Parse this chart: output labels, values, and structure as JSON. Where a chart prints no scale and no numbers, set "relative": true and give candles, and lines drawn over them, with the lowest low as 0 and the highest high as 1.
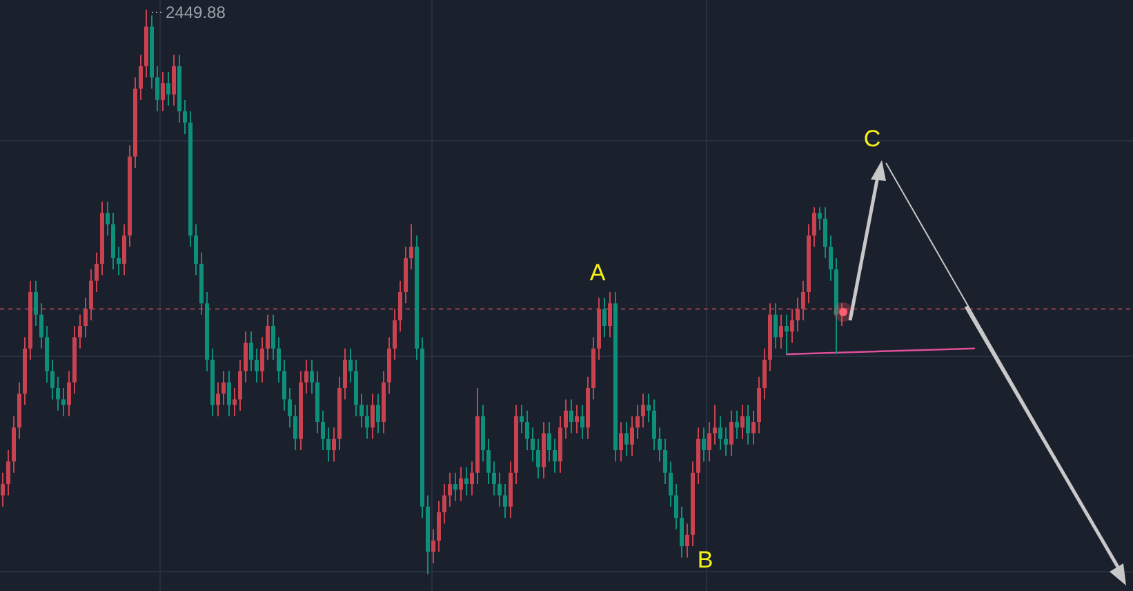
{
  "chart_data": {
    "type": "candlestick",
    "relative": true,
    "grid": true,
    "colors": [
      "#c8424f",
      "#c8424f",
      "#c8424f",
      "#c8424f",
      "#c8424f",
      "#c8424f",
      "#0e8f7a",
      "#0e8f7a",
      "#0e8f7a",
      "#0e8f7a",
      "#0e8f7a",
      "#0e8f7a",
      "#c8424f",
      "#c8424f",
      "#c8424f",
      "#c8424f",
      "#c8424f",
      "#c8424f",
      "#c8424f",
      "#0e8f7a",
      "#0e8f7a",
      "#0e8f7a",
      "#c8424f",
      "#c8424f",
      "#c8424f",
      "#c8424f",
      "#c8424f",
      "#0e8f7a",
      "#0e8f7a",
      "#c8424f",
      "#0e8f7a",
      "#c8424f",
      "#0e8f7a",
      "#0e8f7a",
      "#0e8f7a",
      "#0e8f7a",
      "#0e8f7a",
      "#0e8f7a",
      "#0e8f7a",
      "#c8424f",
      "#c8424f",
      "#0e8f7a",
      "#c8424f",
      "#c8424f",
      "#c8424f",
      "#0e8f7a",
      "#0e8f7a",
      "#c8424f",
      "#c8424f",
      "#0e8f7a",
      "#0e8f7a",
      "#0e8f7a",
      "#0e8f7a",
      "#0e8f7a",
      "#c8424f",
      "#c8424f",
      "#0e8f7a",
      "#0e8f7a",
      "#0e8f7a",
      "#0e8f7a",
      "#c8424f",
      "#c8424f",
      "#c8424f",
      "#0e8f7a",
      "#0e8f7a",
      "#0e8f7a",
      "#0e8f7a",
      "#c8424f",
      "#0e8f7a",
      "#c8424f",
      "#c8424f",
      "#c8424f",
      "#c8424f",
      "#c8424f",
      "#c8424f",
      "#0e8f7a",
      "#0e8f7a",
      "#0e8f7a",
      "#c8424f",
      "#c8424f",
      "#c8424f",
      "#c8424f",
      "#0e8f7a",
      "#c8424f",
      "#0e8f7a",
      "#c8424f",
      "#c8424f",
      "#0e8f7a",
      "#0e8f7a",
      "#0e8f7a",
      "#0e8f7a",
      "#0e8f7a",
      "#c8424f",
      "#c8424f",
      "#0e8f7a",
      "#0e8f7a",
      "#0e8f7a",
      "#0e8f7a",
      "#c8424f",
      "#0e8f7a",
      "#0e8f7a",
      "#c8424f",
      "#c8424f",
      "#0e8f7a",
      "#c8424f",
      "#0e8f7a",
      "#c8424f",
      "#c8424f",
      "#c8424f",
      "#0e8f7a",
      "#c8424f",
      "#0e8f7a",
      "#c8424f",
      "#0e8f7a",
      "#c8424f",
      "#c8424f",
      "#c8424f",
      "#0e8f7a",
      "#0e8f7a",
      "#0e8f7a",
      "#0e8f7a",
      "#0e8f7a",
      "#0e8f7a",
      "#0e8f7a",
      "#c8424f",
      "#c8424f",
      "#c8424f",
      "#0e8f7a",
      "#c8424f",
      "#c8424f",
      "#0e8f7a",
      "#0e8f7a",
      "#c8424f",
      "#0e8f7a",
      "#c8424f",
      "#0e8f7a",
      "#c8424f",
      "#c8424f",
      "#c8424f",
      "#c8424f",
      "#0e8f7a",
      "#c8424f",
      "#0e8f7a",
      "#c8424f",
      "#c8424f",
      "#c8424f",
      "#c8424f",
      "#c8424f",
      "#0e8f7a",
      "#0e8f7a",
      "#0e8f7a",
      "#0e8f7a",
      "#c8424f",
      null,
      null,
      null,
      null,
      null,
      null,
      null,
      null,
      null,
      null,
      null,
      null,
      null,
      null,
      null,
      null,
      null,
      null,
      null,
      null,
      null,
      null,
      null,
      null
    ],
    "annotations": [
      "2449.88",
      "A",
      "B",
      "C"
    ],
    "ref_lines": [
      {
        "axis": "y",
        "value": 0.47,
        "color": "#7a3a48",
        "line_style": "dotted"
      }
    ],
    "categories": [
      null,
      null,
      null,
      null,
      null,
      null,
      null,
      null,
      null,
      null,
      null,
      null,
      null,
      null,
      null,
      null,
      null,
      null,
      null,
      null,
      null,
      null,
      null,
      null,
      null,
      null,
      null,
      null,
      null,
      null,
      null,
      null,
      null,
      null,
      null,
      null,
      null,
      null,
      null,
      null,
      null,
      null,
      null,
      null,
      null,
      null,
      null,
      null,
      null,
      null,
      null,
      null,
      null,
      null,
      null,
      null,
      null,
      null,
      null,
      null,
      null,
      null,
      null,
      null,
      null,
      null,
      null,
      null,
      null,
      null,
      null,
      null,
      null,
      null,
      null,
      null,
      null,
      null,
      null,
      null,
      null,
      null,
      null,
      null,
      null,
      null,
      null,
      null,
      null,
      null,
      null,
      null,
      null,
      null,
      null,
      null,
      null,
      null,
      null,
      null,
      null,
      null,
      null,
      null,
      null,
      null,
      null,
      null,
      null,
      null,
      null,
      null,
      null,
      null,
      null,
      null,
      null,
      null,
      null,
      null,
      null,
      null,
      null,
      null,
      null,
      null,
      null,
      null,
      null,
      null,
      null,
      null,
      null,
      null,
      null,
      null,
      null,
      null,
      null,
      null,
      null,
      null,
      null,
      null,
      null,
      null,
      null,
      null,
      null,
      null,
      null,
      null,
      null,
      null,
      null,
      null,
      null,
      null,
      null,
      null,
      null,
      null,
      null,
      null,
      null,
      null,
      null,
      null,
      null,
      null,
      null,
      null,
      null,
      null,
      null,
      null,
      null
    ],
    "series": [
      {
        "type": "line",
        "color": "#e0509a",
        "values": [
          null,
          null,
          null,
          null,
          null,
          null,
          null,
          null,
          null,
          null,
          null,
          null,
          null,
          null,
          null,
          null,
          null,
          null,
          null,
          null,
          null,
          null,
          null,
          null,
          null,
          null,
          null,
          null,
          null,
          null,
          null,
          null,
          null,
          null,
          null,
          null,
          null,
          null,
          null,
          null,
          null,
          null,
          null,
          null,
          null,
          null,
          null,
          null,
          null,
          null,
          null,
          null,
          null,
          null,
          null,
          null,
          null,
          null,
          null,
          null,
          null,
          null,
          null,
          null,
          null,
          null,
          null,
          null,
          null,
          null,
          null,
          null,
          null,
          null,
          null,
          null,
          null,
          null,
          null,
          null,
          null,
          null,
          null,
          null,
          null,
          null,
          null,
          null,
          null,
          null,
          null,
          null,
          null,
          null,
          null,
          null,
          null,
          null,
          null,
          null,
          null,
          null,
          null,
          null,
          null,
          null,
          null,
          null,
          null,
          null,
          null,
          null,
          null,
          null,
          null,
          null,
          null,
          null,
          null,
          null,
          null,
          null,
          null,
          null,
          null,
          null,
          null,
          null,
          null,
          null,
          null,
          null,
          null,
          null,
          null,
          null,
          null,
          null,
          null,
          null,
          null,
          null,
          0.39,
          null,
          null,
          null,
          null,
          null,
          null,
          null,
          null,
          null,
          null,
          null,
          null,
          null,
          null,
          null,
          null,
          null,
          null,
          null,
          null,
          null,
          null,
          null,
          null,
          null,
          null,
          null,
          null,
          null,
          null,
          null,
          null,
          null,
          0.4
        ]
      }
    ],
    "ohlc": [
      [
        0.14,
        0.18,
        0.12,
        0.16
      ],
      [
        0.16,
        0.22,
        0.14,
        0.2
      ],
      [
        0.2,
        0.28,
        0.18,
        0.26
      ],
      [
        0.26,
        0.34,
        0.24,
        0.32
      ],
      [
        0.32,
        0.42,
        0.3,
        0.4
      ],
      [
        0.4,
        0.52,
        0.38,
        0.5
      ],
      [
        0.5,
        0.52,
        0.44,
        0.46
      ],
      [
        0.46,
        0.48,
        0.4,
        0.42
      ],
      [
        0.42,
        0.44,
        0.34,
        0.36
      ],
      [
        0.36,
        0.38,
        0.31,
        0.33
      ],
      [
        0.33,
        0.35,
        0.29,
        0.31
      ],
      [
        0.31,
        0.33,
        0.28,
        0.3
      ],
      [
        0.3,
        0.36,
        0.28,
        0.34
      ],
      [
        0.34,
        0.44,
        0.32,
        0.42
      ],
      [
        0.42,
        0.46,
        0.4,
        0.44
      ],
      [
        0.44,
        0.49,
        0.42,
        0.47
      ],
      [
        0.47,
        0.54,
        0.45,
        0.52
      ],
      [
        0.52,
        0.57,
        0.5,
        0.55
      ],
      [
        0.55,
        0.66,
        0.53,
        0.64
      ],
      [
        0.64,
        0.66,
        0.6,
        0.62
      ],
      [
        0.62,
        0.64,
        0.54,
        0.56
      ],
      [
        0.56,
        0.58,
        0.53,
        0.55
      ],
      [
        0.55,
        0.62,
        0.53,
        0.6
      ],
      [
        0.6,
        0.76,
        0.58,
        0.74
      ],
      [
        0.74,
        0.88,
        0.72,
        0.86
      ],
      [
        0.86,
        0.92,
        0.84,
        0.9
      ],
      [
        0.9,
        1,
        0.88,
        0.97
      ],
      [
        0.97,
        0.99,
        0.86,
        0.88
      ],
      [
        0.88,
        0.9,
        0.82,
        0.84
      ],
      [
        0.84,
        0.89,
        0.82,
        0.87
      ],
      [
        0.87,
        0.89,
        0.83,
        0.85
      ],
      [
        0.85,
        0.92,
        0.83,
        0.9
      ],
      [
        0.9,
        0.92,
        0.8,
        0.82
      ],
      [
        0.82,
        0.84,
        0.78,
        0.8
      ],
      [
        0.8,
        0.82,
        0.58,
        0.6
      ],
      [
        0.6,
        0.62,
        0.53,
        0.55
      ],
      [
        0.55,
        0.57,
        0.46,
        0.48
      ],
      [
        0.48,
        0.5,
        0.36,
        0.38
      ],
      [
        0.38,
        0.4,
        0.28,
        0.3
      ],
      [
        0.3,
        0.34,
        0.28,
        0.32
      ],
      [
        0.32,
        0.36,
        0.3,
        0.34
      ],
      [
        0.34,
        0.36,
        0.28,
        0.3
      ],
      [
        0.3,
        0.33,
        0.28,
        0.31
      ],
      [
        0.31,
        0.38,
        0.29,
        0.36
      ],
      [
        0.36,
        0.43,
        0.34,
        0.41
      ],
      [
        0.41,
        0.43,
        0.36,
        0.38
      ],
      [
        0.38,
        0.4,
        0.34,
        0.36
      ],
      [
        0.36,
        0.42,
        0.34,
        0.4
      ],
      [
        0.4,
        0.46,
        0.38,
        0.44
      ],
      [
        0.44,
        0.46,
        0.38,
        0.4
      ],
      [
        0.4,
        0.42,
        0.34,
        0.36
      ],
      [
        0.36,
        0.38,
        0.29,
        0.31
      ],
      [
        0.31,
        0.33,
        0.26,
        0.28
      ],
      [
        0.28,
        0.3,
        0.22,
        0.24
      ],
      [
        0.24,
        0.36,
        0.22,
        0.34
      ],
      [
        0.34,
        0.38,
        0.32,
        0.36
      ],
      [
        0.36,
        0.38,
        0.32,
        0.34
      ],
      [
        0.34,
        0.36,
        0.25,
        0.27
      ],
      [
        0.27,
        0.29,
        0.22,
        0.24
      ],
      [
        0.24,
        0.26,
        0.2,
        0.22
      ],
      [
        0.22,
        0.26,
        0.2,
        0.24
      ],
      [
        0.24,
        0.35,
        0.22,
        0.33
      ],
      [
        0.33,
        0.4,
        0.31,
        0.38
      ],
      [
        0.38,
        0.4,
        0.34,
        0.36
      ],
      [
        0.36,
        0.38,
        0.28,
        0.3
      ],
      [
        0.3,
        0.32,
        0.26,
        0.28
      ],
      [
        0.28,
        0.3,
        0.24,
        0.26
      ],
      [
        0.26,
        0.32,
        0.24,
        0.3
      ],
      [
        0.3,
        0.32,
        0.25,
        0.27
      ],
      [
        0.27,
        0.36,
        0.25,
        0.34
      ],
      [
        0.34,
        0.42,
        0.32,
        0.4
      ],
      [
        0.4,
        0.47,
        0.38,
        0.45
      ],
      [
        0.45,
        0.52,
        0.43,
        0.5
      ],
      [
        0.5,
        0.58,
        0.48,
        0.56
      ],
      [
        0.56,
        0.62,
        0.54,
        0.58
      ],
      [
        0.58,
        0.6,
        0.38,
        0.4
      ],
      [
        0.4,
        0.42,
        0.1,
        0.12
      ],
      [
        0.12,
        0.14,
        0,
        0.04
      ],
      [
        0.04,
        0.08,
        0.02,
        0.06
      ],
      [
        0.06,
        0.13,
        0.04,
        0.11
      ],
      [
        0.11,
        0.16,
        0.09,
        0.14
      ],
      [
        0.14,
        0.18,
        0.12,
        0.16
      ],
      [
        0.16,
        0.18,
        0.13,
        0.15
      ],
      [
        0.15,
        0.19,
        0.13,
        0.17
      ],
      [
        0.17,
        0.19,
        0.14,
        0.16
      ],
      [
        0.16,
        0.2,
        0.14,
        0.18
      ],
      [
        0.18,
        0.33,
        0.16,
        0.28
      ],
      [
        0.28,
        0.3,
        0.2,
        0.22
      ],
      [
        0.22,
        0.24,
        0.16,
        0.18
      ],
      [
        0.18,
        0.2,
        0.14,
        0.16
      ],
      [
        0.16,
        0.18,
        0.12,
        0.14
      ],
      [
        0.14,
        0.16,
        0.1,
        0.12
      ],
      [
        0.12,
        0.2,
        0.1,
        0.18
      ],
      [
        0.18,
        0.3,
        0.16,
        0.28
      ],
      [
        0.28,
        0.3,
        0.25,
        0.27
      ],
      [
        0.27,
        0.29,
        0.22,
        0.24
      ],
      [
        0.24,
        0.26,
        0.2,
        0.22
      ],
      [
        0.22,
        0.24,
        0.17,
        0.19
      ],
      [
        0.19,
        0.27,
        0.17,
        0.25
      ],
      [
        0.25,
        0.27,
        0.2,
        0.22
      ],
      [
        0.22,
        0.24,
        0.18,
        0.2
      ],
      [
        0.2,
        0.28,
        0.18,
        0.26
      ],
      [
        0.26,
        0.31,
        0.24,
        0.29
      ],
      [
        0.29,
        0.31,
        0.25,
        0.27
      ],
      [
        0.27,
        0.3,
        0.25,
        0.28
      ],
      [
        0.28,
        0.3,
        0.24,
        0.26
      ],
      [
        0.26,
        0.35,
        0.24,
        0.33
      ],
      [
        0.33,
        0.42,
        0.31,
        0.4
      ],
      [
        0.4,
        0.49,
        0.38,
        0.47
      ],
      [
        0.47,
        0.49,
        0.42,
        0.44
      ],
      [
        0.44,
        0.5,
        0.42,
        0.48
      ],
      [
        0.48,
        0.5,
        0.2,
        0.22
      ],
      [
        0.22,
        0.27,
        0.2,
        0.25
      ],
      [
        0.25,
        0.27,
        0.21,
        0.23
      ],
      [
        0.23,
        0.28,
        0.21,
        0.26
      ],
      [
        0.26,
        0.3,
        0.24,
        0.28
      ],
      [
        0.28,
        0.32,
        0.26,
        0.3
      ],
      [
        0.3,
        0.32,
        0.27,
        0.29
      ],
      [
        0.29,
        0.31,
        0.22,
        0.24
      ],
      [
        0.24,
        0.26,
        0.2,
        0.22
      ],
      [
        0.22,
        0.24,
        0.16,
        0.18
      ],
      [
        0.18,
        0.2,
        0.12,
        0.14
      ],
      [
        0.14,
        0.16,
        0.08,
        0.1
      ],
      [
        0.1,
        0.12,
        0.03,
        0.05
      ],
      [
        0.05,
        0.09,
        0.03,
        0.07
      ],
      [
        0.07,
        0.2,
        0.05,
        0.18
      ],
      [
        0.18,
        0.26,
        0.16,
        0.24
      ],
      [
        0.24,
        0.26,
        0.2,
        0.22
      ],
      [
        0.22,
        0.27,
        0.2,
        0.25
      ],
      [
        0.25,
        0.3,
        0.23,
        0.26
      ],
      [
        0.26,
        0.28,
        0.22,
        0.24
      ],
      [
        0.24,
        0.26,
        0.21,
        0.23
      ],
      [
        0.23,
        0.29,
        0.21,
        0.27
      ],
      [
        0.27,
        0.29,
        0.24,
        0.26
      ],
      [
        0.26,
        0.3,
        0.24,
        0.28
      ],
      [
        0.28,
        0.3,
        0.23,
        0.25
      ],
      [
        0.25,
        0.29,
        0.23,
        0.27
      ],
      [
        0.27,
        0.35,
        0.25,
        0.33
      ],
      [
        0.33,
        0.4,
        0.31,
        0.38
      ],
      [
        0.38,
        0.48,
        0.36,
        0.46
      ],
      [
        0.46,
        0.48,
        0.4,
        0.42
      ],
      [
        0.42,
        0.46,
        0.4,
        0.44
      ],
      [
        0.44,
        0.46,
        0.39,
        0.43
      ],
      [
        0.43,
        0.47,
        0.41,
        0.45
      ],
      [
        0.45,
        0.49,
        0.43,
        0.47
      ],
      [
        0.47,
        0.52,
        0.45,
        0.5
      ],
      [
        0.5,
        0.62,
        0.48,
        0.6
      ],
      [
        0.6,
        0.65,
        0.58,
        0.64
      ],
      [
        0.64,
        0.65,
        0.61,
        0.63
      ],
      [
        0.63,
        0.65,
        0.56,
        0.58
      ],
      [
        0.58,
        0.6,
        0.52,
        0.54
      ],
      [
        0.54,
        0.56,
        0.39,
        0.46
      ],
      [
        0.46,
        0.48,
        0.44,
        0.47
      ],
      null,
      null,
      null,
      null,
      null,
      null,
      null,
      null,
      null,
      null,
      null,
      null,
      null,
      null,
      null,
      null,
      null,
      null,
      null,
      null,
      null,
      null,
      null,
      null
    ]
  }
}
